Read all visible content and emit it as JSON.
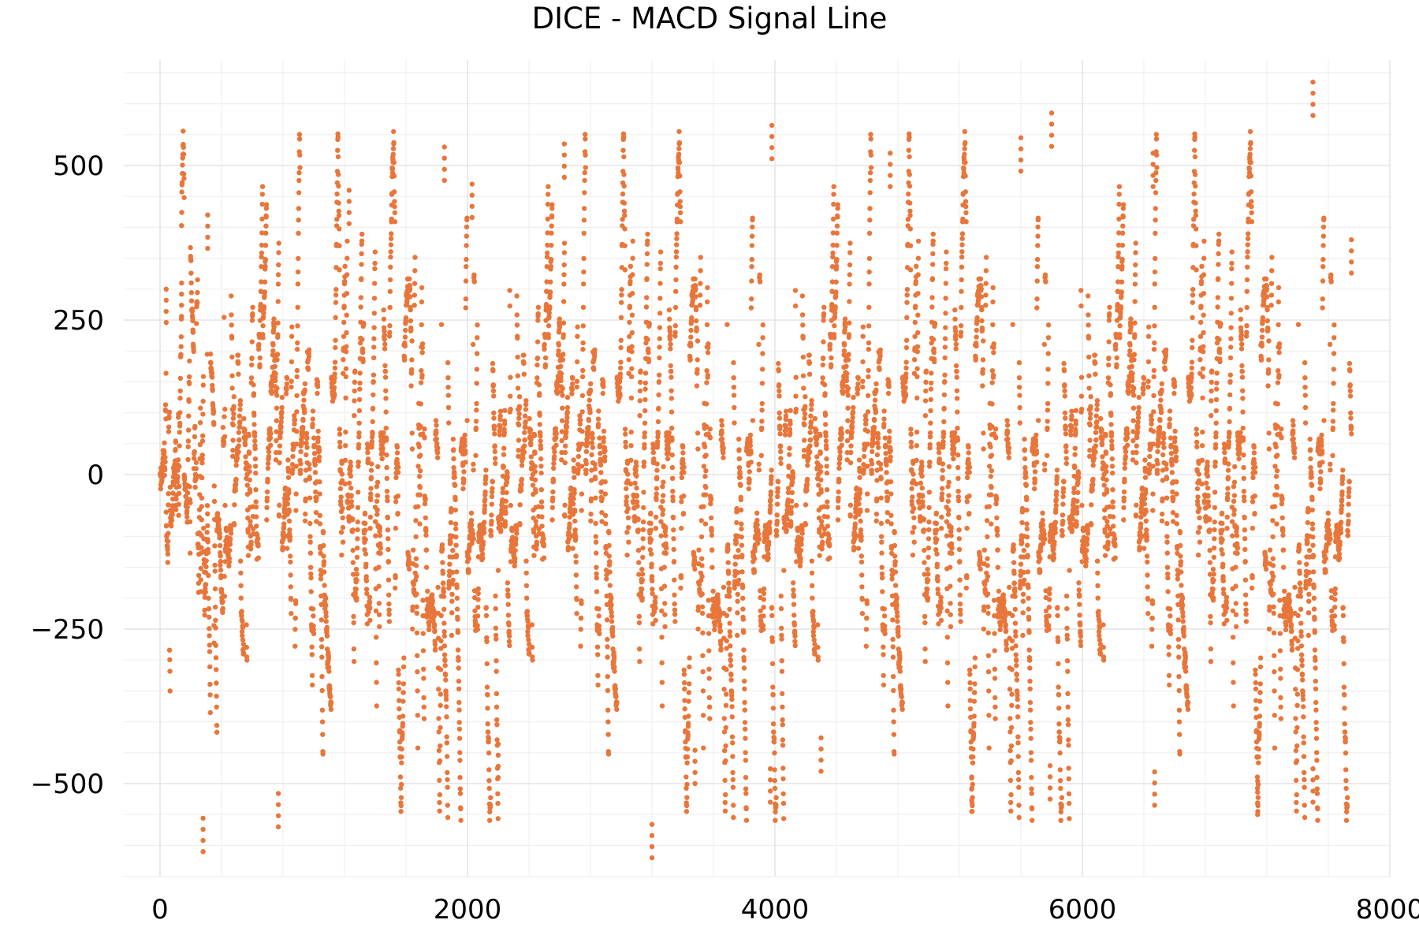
{
  "chart_data": {
    "type": "scatter",
    "title": "DICE - MACD Signal Line",
    "xlabel": "",
    "ylabel": "",
    "xlim": [
      -230,
      8000
    ],
    "ylim": [
      -650,
      650
    ],
    "x_ticks": [
      0,
      2000,
      4000,
      6000,
      8000
    ],
    "x_tick_labels": [
      "0",
      "2000",
      "4000",
      "6000",
      "8000"
    ],
    "x_minor_step": 400,
    "y_ticks": [
      -500,
      -250,
      0,
      250,
      500
    ],
    "y_tick_labels": [
      "−500",
      "−250",
      "0",
      "250",
      "500"
    ],
    "y_minor_step": 50,
    "grid": true,
    "legend": null,
    "marker_color": "#E8763A",
    "marker_radius": 3.2,
    "series": [
      {
        "name": "MACD Signal Line",
        "n_points": 7750,
        "x_start": 1,
        "x_end": 7750,
        "typical_range": [
          -250,
          250
        ],
        "observed_min": -620,
        "observed_max": 640,
        "notable_points": [
          {
            "x": 40,
            "y": 300
          },
          {
            "x": 140,
            "y": 310
          },
          {
            "x": 280,
            "y": -610
          },
          {
            "x": 310,
            "y": 420
          },
          {
            "x": 770,
            "y": -570
          },
          {
            "x": 1230,
            "y": 460
          },
          {
            "x": 1850,
            "y": 530
          },
          {
            "x": 2030,
            "y": 470
          },
          {
            "x": 2200,
            "y": -490
          },
          {
            "x": 2630,
            "y": 535
          },
          {
            "x": 3200,
            "y": -620
          },
          {
            "x": 3480,
            "y": -500
          },
          {
            "x": 3980,
            "y": 565
          },
          {
            "x": 3970,
            "y": -530
          },
          {
            "x": 4300,
            "y": -480
          },
          {
            "x": 4750,
            "y": 520
          },
          {
            "x": 5280,
            "y": -545
          },
          {
            "x": 5600,
            "y": 545
          },
          {
            "x": 5800,
            "y": 585
          },
          {
            "x": 5790,
            "y": -525
          },
          {
            "x": 6460,
            "y": 520
          },
          {
            "x": 6470,
            "y": -535
          },
          {
            "x": 7140,
            "y": -550
          },
          {
            "x": 7500,
            "y": 635
          },
          {
            "x": 7500,
            "y": -530
          },
          {
            "x": 7750,
            "y": 380
          }
        ]
      }
    ]
  }
}
